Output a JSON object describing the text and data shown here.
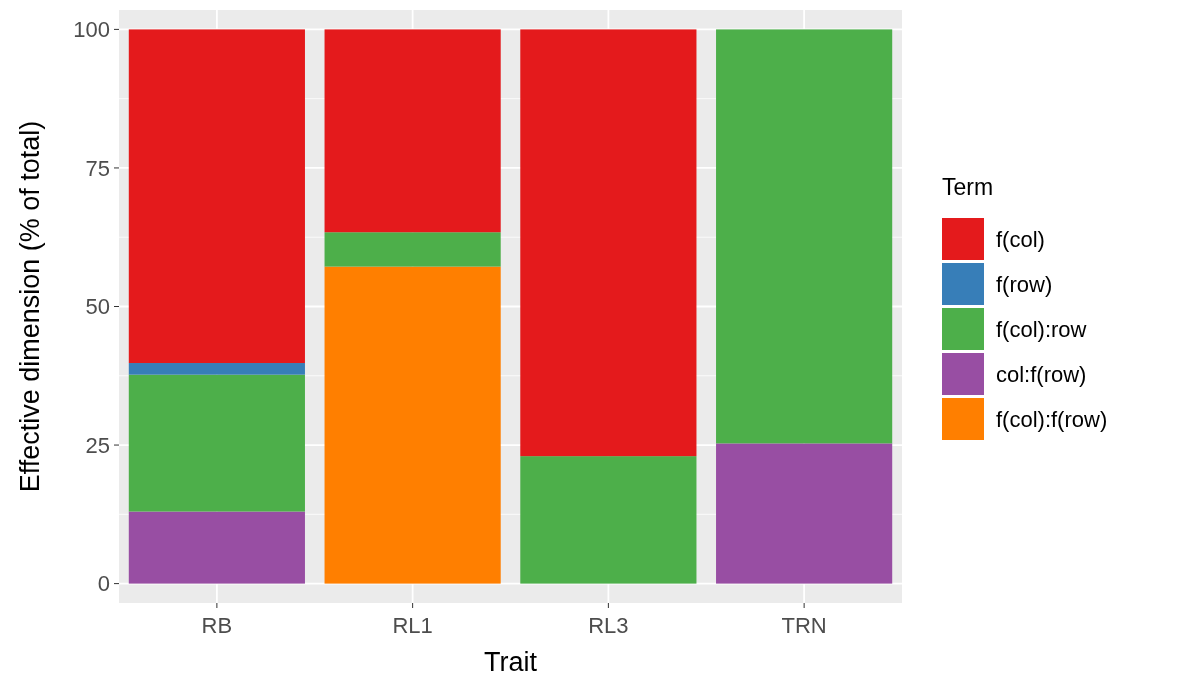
{
  "chart_data": {
    "type": "bar",
    "stacked": true,
    "xlabel": "Trait",
    "ylabel": "Effective dimension (% of total)",
    "legend_title": "Term",
    "legend": "right",
    "grid": true,
    "categories": [
      "RB",
      "RL1",
      "RL3",
      "TRN"
    ],
    "series": [
      {
        "name": "f(col):f(row)",
        "color": "#ff7f00",
        "values": [
          0,
          57.2,
          0,
          0
        ]
      },
      {
        "name": "col:f(row)",
        "color": "#984ea3",
        "values": [
          13.0,
          0,
          0,
          25.3
        ]
      },
      {
        "name": "f(col):row",
        "color": "#4daf4a",
        "values": [
          24.7,
          6.2,
          23.0,
          74.7
        ]
      },
      {
        "name": "f(row)",
        "color": "#377eb8",
        "values": [
          2.1,
          0,
          0,
          0
        ]
      },
      {
        "name": "f(col)",
        "color": "#e41a1c",
        "values": [
          60.2,
          36.6,
          77.0,
          0
        ]
      }
    ],
    "ylim": [
      -3.5,
      103.5
    ],
    "yticks": [
      0,
      25,
      50,
      75,
      100
    ]
  }
}
